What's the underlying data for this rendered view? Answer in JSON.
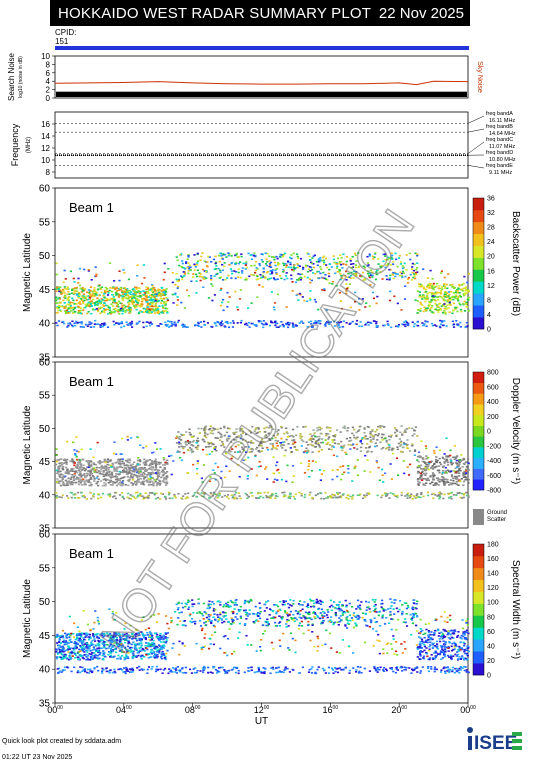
{
  "header": {
    "title": "HOKKAIDO WEST RADAR SUMMARY PLOT",
    "date": "22 Nov 2025"
  },
  "cpid": {
    "label": "CPID:",
    "value": "151"
  },
  "noise_panel": {
    "ylabel": "Search Noise",
    "ysub": "log10 (noise in dB)",
    "yticks": [
      "0",
      "2",
      "4",
      "6",
      "8",
      "10"
    ],
    "legend": "Sky Noise",
    "legend_color": "#cc3300"
  },
  "freq_panel": {
    "ylabel": "Frequency",
    "yunit": "(MHz)",
    "yticks": [
      "8",
      "10",
      "12",
      "14",
      "16"
    ],
    "bands": [
      {
        "name": "freq bandA",
        "value": "16.11 MHz"
      },
      {
        "name": "freq bandB",
        "value": "14.64 MHz"
      },
      {
        "name": "freq bandC",
        "value": "11.07 MHz"
      },
      {
        "name": "freq bandD",
        "value": "10.80 MHz"
      },
      {
        "name": "freq bandE",
        "value": "9.11 MHz"
      }
    ]
  },
  "panels": [
    {
      "beam": "Beam  1",
      "ylabel": "Magnetic Latitude",
      "cbar_label": "Backscatter Power (dB)",
      "cbar_ticks": [
        "0",
        "4",
        "8",
        "12",
        "16",
        "20",
        "24",
        "28",
        "32",
        "36"
      ]
    },
    {
      "beam": "Beam  1",
      "ylabel": "Magnetic Latitude",
      "cbar_label": "Doppler Velocity (m s⁻¹)",
      "cbar_ticks": [
        "800",
        "600",
        "400",
        "200",
        "0",
        "-200",
        "-400",
        "-600",
        "-800"
      ],
      "ground_label": [
        "Ground",
        "Scatter"
      ]
    },
    {
      "beam": "Beam  1",
      "ylabel": "Magnetic Latitude",
      "cbar_label": "Spectral Width (m s⁻¹)",
      "cbar_ticks": [
        "0",
        "20",
        "40",
        "60",
        "80",
        "100",
        "120",
        "140",
        "160",
        "180"
      ]
    }
  ],
  "lat_ticks": [
    "35",
    "40",
    "45",
    "50",
    "55",
    "60"
  ],
  "time_ticks": [
    "00",
    "04",
    "08",
    "12",
    "16",
    "20",
    "00"
  ],
  "time_tick_sup": "00",
  "xlabel": "UT",
  "watermark": "NOT FOR PUBLICATION",
  "footer": {
    "line1": "Quick look plot created by sddata.adm",
    "line2": "01:22 UT 23 Nov 2025"
  },
  "logo": {
    "text": "ISEE"
  },
  "chart_data": [
    {
      "type": "line",
      "title": "Search Noise",
      "series": [
        {
          "name": "Sky Noise",
          "x": [
            0,
            2,
            4,
            6,
            8,
            10,
            12,
            14,
            16,
            18,
            20,
            21,
            22,
            24
          ],
          "values": [
            3.5,
            3.6,
            3.7,
            3.9,
            3.6,
            3.4,
            3.3,
            3.3,
            3.4,
            3.4,
            3.6,
            3.2,
            4.0,
            3.9
          ]
        }
      ],
      "xlabel": "UT",
      "ylim": [
        0,
        10
      ]
    },
    {
      "type": "scatter",
      "title": "Frequency",
      "series": [
        {
          "name": "freq",
          "x": [
            0,
            24
          ],
          "values": [
            10.8,
            10.8
          ]
        }
      ],
      "ylim": [
        7,
        18
      ]
    },
    {
      "type": "heatmap",
      "title": "Backscatter Power (dB)",
      "xlabel": "UT",
      "ylabel": "Magnetic Latitude",
      "ylim": [
        35,
        60
      ],
      "x_range": [
        0,
        24
      ],
      "zlim": [
        0,
        36
      ]
    },
    {
      "type": "heatmap",
      "title": "Doppler Velocity (m s⁻¹)",
      "xlabel": "UT",
      "ylabel": "Magnetic Latitude",
      "ylim": [
        35,
        60
      ],
      "x_range": [
        0,
        24
      ],
      "zlim": [
        -800,
        800
      ]
    },
    {
      "type": "heatmap",
      "title": "Spectral Width (m s⁻¹)",
      "xlabel": "UT",
      "ylabel": "Magnetic Latitude",
      "ylim": [
        35,
        60
      ],
      "x_range": [
        0,
        24
      ],
      "zlim": [
        0,
        180
      ]
    }
  ]
}
